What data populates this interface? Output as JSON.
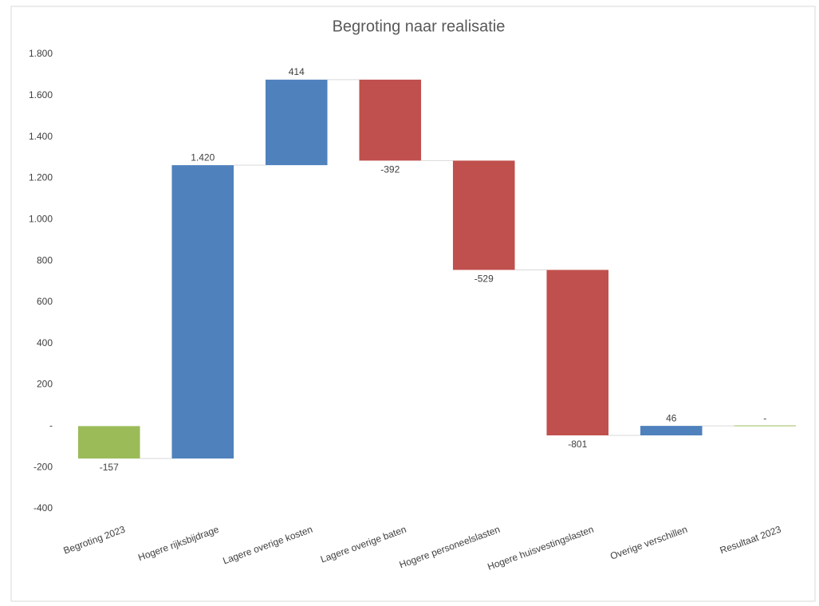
{
  "chart_data": {
    "type": "waterfall",
    "title": "Begroting  naar realisatie",
    "categories": [
      "Begroting 2023",
      "Hogere rijksbijdrage",
      "Lagere overige kosten",
      "Lagere overige baten",
      "Hogere personeelslasten",
      "Hogere huisvestingslasten",
      "Overige verschillen",
      "Resultaat 2023"
    ],
    "values": [
      -157,
      1420,
      414,
      -392,
      -529,
      -801,
      46,
      0
    ],
    "value_labels": [
      "-157",
      "1.420",
      "414",
      "-392",
      "-529",
      "-801",
      "46",
      "-"
    ],
    "colors": [
      "#9bbb59",
      "#4f81bd",
      "#4f81bd",
      "#c0504d",
      "#c0504d",
      "#c0504d",
      "#4f81bd",
      "#9bbb59"
    ],
    "ylim": [
      -400,
      1800
    ],
    "yticks": [
      -400,
      -200,
      {
        "value": 0,
        "label": "-"
      },
      200,
      400,
      600,
      800,
      {
        "value": 1000,
        "label": "1.000"
      },
      {
        "value": 1200,
        "label": "1.200"
      },
      {
        "value": 1400,
        "label": "1.400"
      },
      {
        "value": 1600,
        "label": "1.600"
      },
      {
        "value": 1800,
        "label": "1.800"
      }
    ],
    "grid": false
  }
}
